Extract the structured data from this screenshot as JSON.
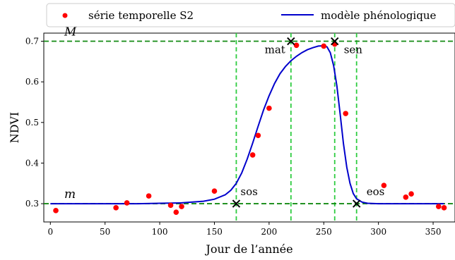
{
  "chart_data": {
    "type": "scatter",
    "xlabel": "Jour de l’année",
    "ylabel": "NDVI",
    "xlim": [
      -6,
      370
    ],
    "ylim": [
      0.255,
      0.72
    ],
    "xticks": [
      0,
      50,
      100,
      150,
      200,
      250,
      300,
      350
    ],
    "yticks": [
      0.3,
      0.4,
      0.5,
      0.6,
      0.7
    ],
    "ytick_labels": [
      "0.3",
      "0.4",
      "0.5",
      "0.6",
      "0.7"
    ],
    "grid": false,
    "legend_position": "top",
    "colors": {
      "points": "#ff0000",
      "model": "#0000cc",
      "guides": "#2ecc40",
      "levels": "#138a13",
      "markers": "#000000"
    },
    "series": [
      {
        "name": "série temporelle S2",
        "kind": "scatter",
        "x": [
          5,
          60,
          70,
          90,
          110,
          115,
          120,
          150,
          185,
          190,
          200,
          225,
          250,
          260,
          270,
          305,
          325,
          330,
          355,
          360
        ],
        "y": [
          0.283,
          0.29,
          0.302,
          0.319,
          0.296,
          0.279,
          0.293,
          0.331,
          0.42,
          0.468,
          0.535,
          0.69,
          0.688,
          0.693,
          0.522,
          0.345,
          0.316,
          0.324,
          0.293,
          0.29
        ]
      },
      {
        "name": "modèle phénologique",
        "kind": "line",
        "x": [
          0,
          20,
          40,
          60,
          80,
          100,
          120,
          140,
          150,
          160,
          165,
          170,
          175,
          180,
          185,
          190,
          195,
          200,
          205,
          210,
          215,
          220,
          225,
          230,
          235,
          240,
          245,
          250,
          253,
          256,
          259,
          262,
          265,
          268,
          271,
          274,
          277,
          280,
          285,
          290,
          300,
          320,
          340,
          360
        ],
        "y": [
          0.3,
          0.3,
          0.3,
          0.3,
          0.3,
          0.301,
          0.302,
          0.306,
          0.311,
          0.322,
          0.333,
          0.35,
          0.376,
          0.41,
          0.449,
          0.491,
          0.531,
          0.566,
          0.596,
          0.62,
          0.638,
          0.652,
          0.663,
          0.672,
          0.679,
          0.684,
          0.688,
          0.689,
          0.686,
          0.672,
          0.64,
          0.59,
          0.52,
          0.448,
          0.39,
          0.35,
          0.325,
          0.312,
          0.304,
          0.301,
          0.3,
          0.3,
          0.3,
          0.3
        ]
      }
    ],
    "levels": [
      {
        "label": "M",
        "y": 0.7
      },
      {
        "label": "m",
        "y": 0.3
      }
    ],
    "vertical_lines": [
      170,
      220,
      260,
      280
    ],
    "markers": [
      {
        "label": "sos",
        "x": 170,
        "y": 0.3
      },
      {
        "label": "mat",
        "x": 220,
        "y": 0.7
      },
      {
        "label": "sen",
        "x": 260,
        "y": 0.7
      },
      {
        "label": "eos",
        "x": 280,
        "y": 0.3
      }
    ]
  }
}
